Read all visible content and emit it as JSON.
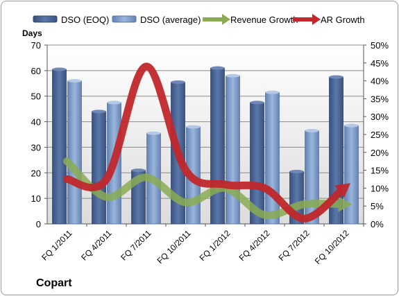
{
  "company": "Copart",
  "chart_data": {
    "type": "bar",
    "categories": [
      "FQ 1/2011",
      "FQ 4/2011",
      "FQ 7/2011",
      "FQ 10/2011",
      "FQ 1/2012",
      "FQ 4/2012",
      "FQ 7/2012",
      "FQ 10/2012"
    ],
    "ylabel_left": "Days",
    "ylim_left": [
      0,
      70
    ],
    "yticks_left": [
      "0",
      "10",
      "20",
      "30",
      "40",
      "50",
      "60",
      "70"
    ],
    "ylim_right": [
      0,
      50
    ],
    "yticks_right": [
      "0%",
      "5%",
      "10%",
      "15%",
      "20%",
      "25%",
      "30%",
      "35%",
      "40%",
      "45%",
      "50%"
    ],
    "grid": true,
    "legend_position": "top",
    "series": [
      {
        "name": "DSO (EOQ)",
        "kind": "bar",
        "color": "#4f6a9a",
        "axis": "left",
        "values": [
          60.5,
          44,
          21,
          55.5,
          61,
          47.5,
          20.5,
          57.5
        ]
      },
      {
        "name": "DSO (average)",
        "kind": "bar",
        "color": "#7f9ecb",
        "axis": "left",
        "values": [
          56,
          47.5,
          35.5,
          38,
          58,
          51.5,
          36.5,
          38.5
        ]
      },
      {
        "name": "Revenue Growth",
        "kind": "line",
        "color": "#8aab52",
        "axis": "right",
        "values": [
          17.5,
          7.5,
          13,
          6,
          10,
          2.5,
          5.5,
          5.5
        ]
      },
      {
        "name": "AR Growth",
        "kind": "line",
        "color": "#c0282b",
        "axis": "right",
        "values": [
          12.5,
          12.5,
          44,
          15,
          11,
          10,
          1.5,
          10
        ]
      }
    ]
  }
}
